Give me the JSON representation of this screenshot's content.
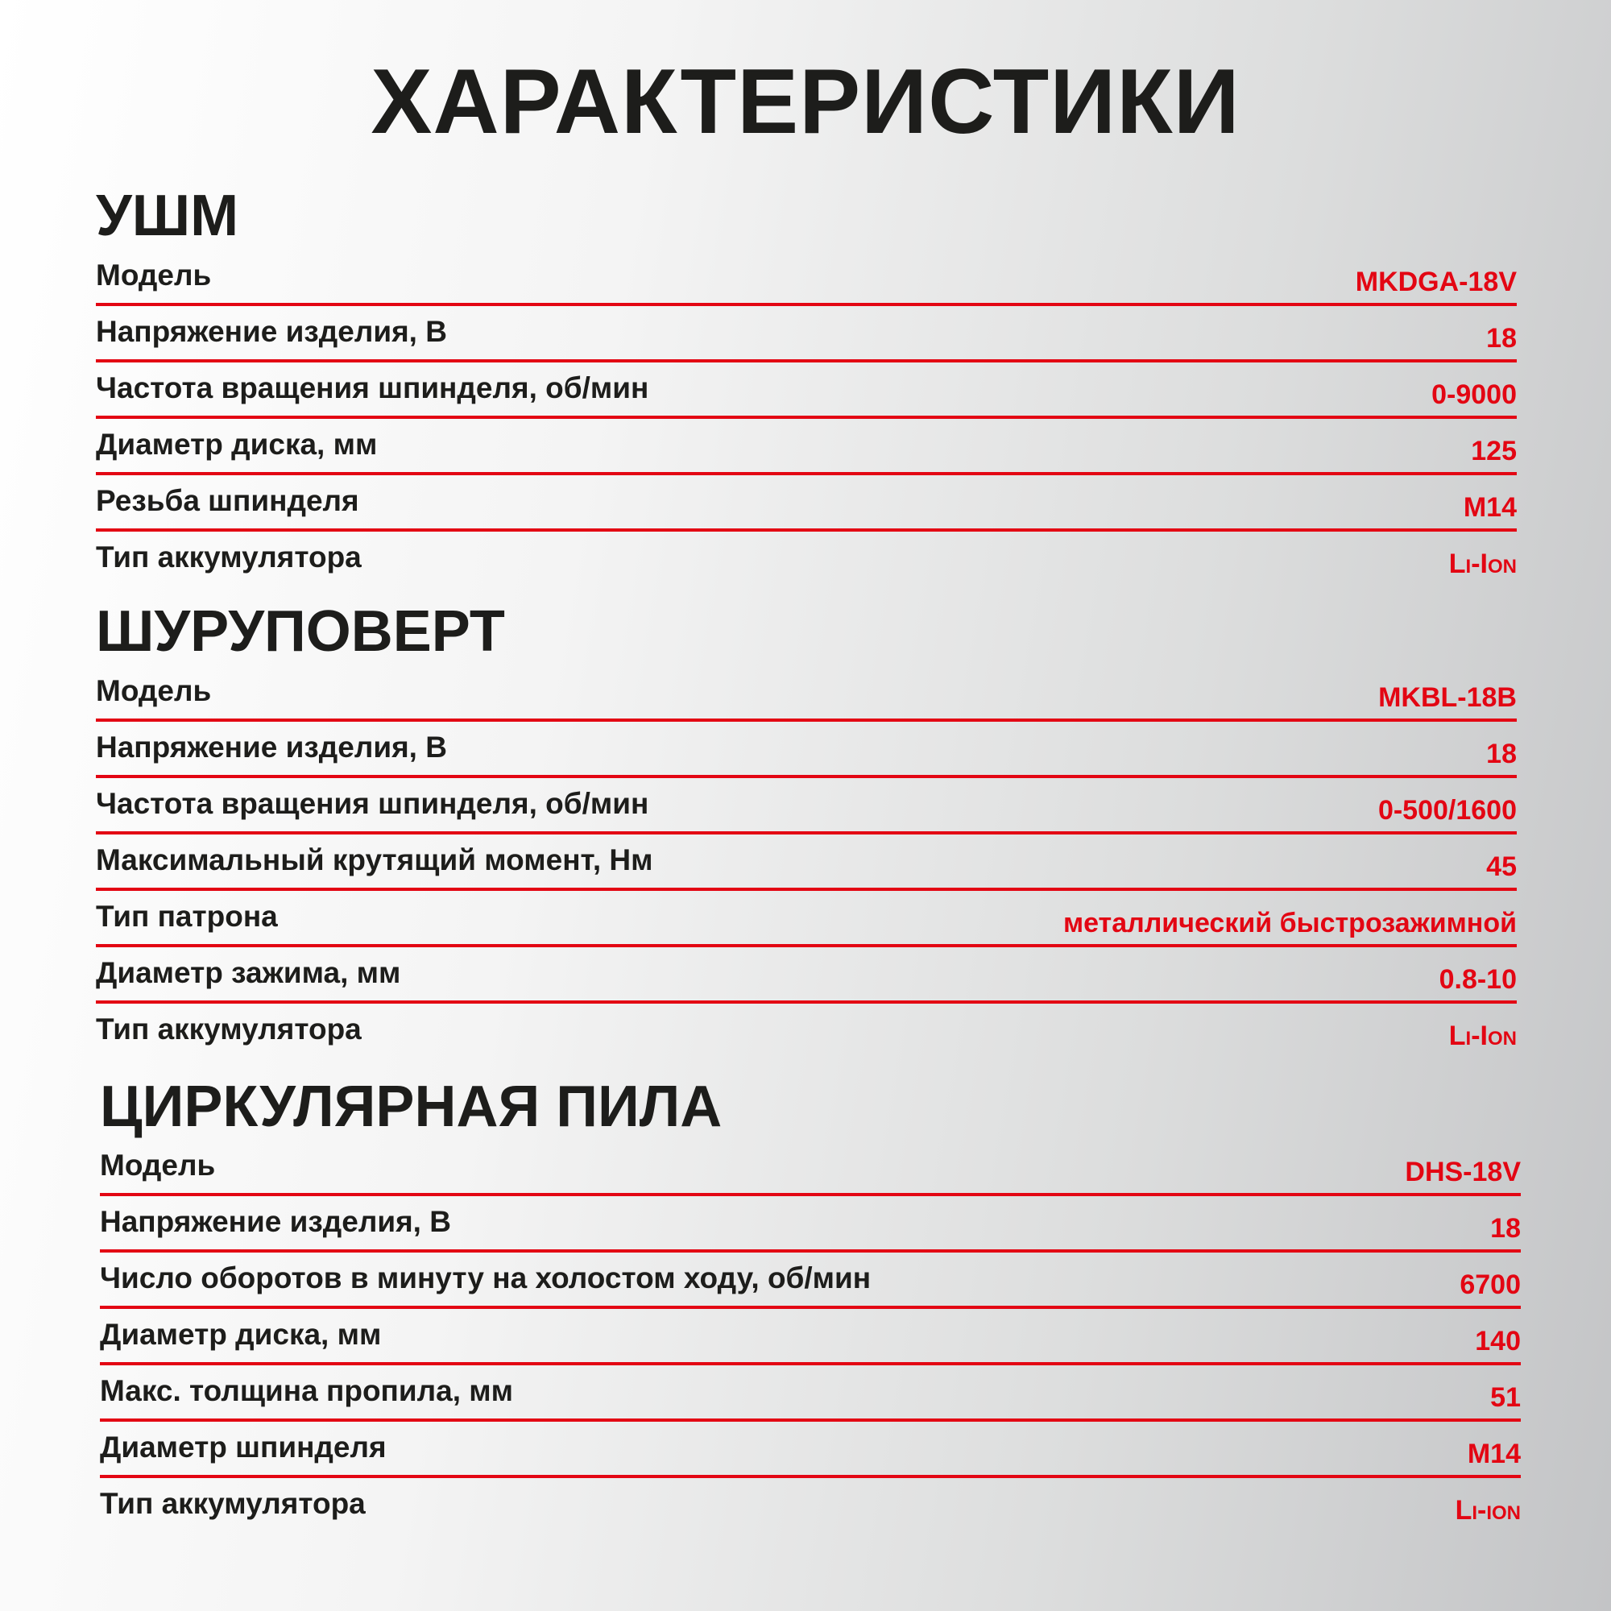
{
  "title": "ХАРАКТЕРИСТИКИ",
  "colors": {
    "accent": "#e30613",
    "text": "#1d1d1b"
  },
  "sections": [
    {
      "heading": "УШМ",
      "rows": [
        {
          "label": "Модель",
          "value": "MKDGA-18V"
        },
        {
          "label": "Напряжение изделия, В",
          "value": "18"
        },
        {
          "label": "Частота вращения шпинделя, об/мин",
          "value": "0-9000"
        },
        {
          "label": "Диаметр диска, мм",
          "value": "125"
        },
        {
          "label": "Резьба шпинделя",
          "value": "M14"
        },
        {
          "label": "Тип аккумулятора",
          "value": "Li-Ion"
        }
      ]
    },
    {
      "heading": "ШУРУПОВЕРТ",
      "rows": [
        {
          "label": "Модель",
          "value": "MKBL-18B"
        },
        {
          "label": "Напряжение изделия, В",
          "value": "18"
        },
        {
          "label": "Частота вращения шпинделя, об/мин",
          "value": "0-500/1600"
        },
        {
          "label": "Максимальный крутящий момент, Нм",
          "value": "45"
        },
        {
          "label": "Тип патрона",
          "value": "металлический быстрозажимной"
        },
        {
          "label": "Диаметр зажима, мм",
          "value": "0.8-10"
        },
        {
          "label": "Тип аккумулятора",
          "value": "Li-Ion"
        }
      ]
    },
    {
      "heading": "ЦИРКУЛЯРНАЯ ПИЛА",
      "rows": [
        {
          "label": "Модель",
          "value": "DHS-18V"
        },
        {
          "label": "Напряжение изделия, В",
          "value": "18"
        },
        {
          "label": "Число оборотов в минуту на холостом ходу, об/мин",
          "value": "6700"
        },
        {
          "label": "Диаметр диска, мм",
          "value": "140"
        },
        {
          "label": "Макс. толщина пропила, мм",
          "value": "51"
        },
        {
          "label": "Диаметр шпинделя",
          "value": "M14"
        },
        {
          "label": "Тип аккумулятора",
          "value": "Li-ion"
        }
      ]
    }
  ]
}
